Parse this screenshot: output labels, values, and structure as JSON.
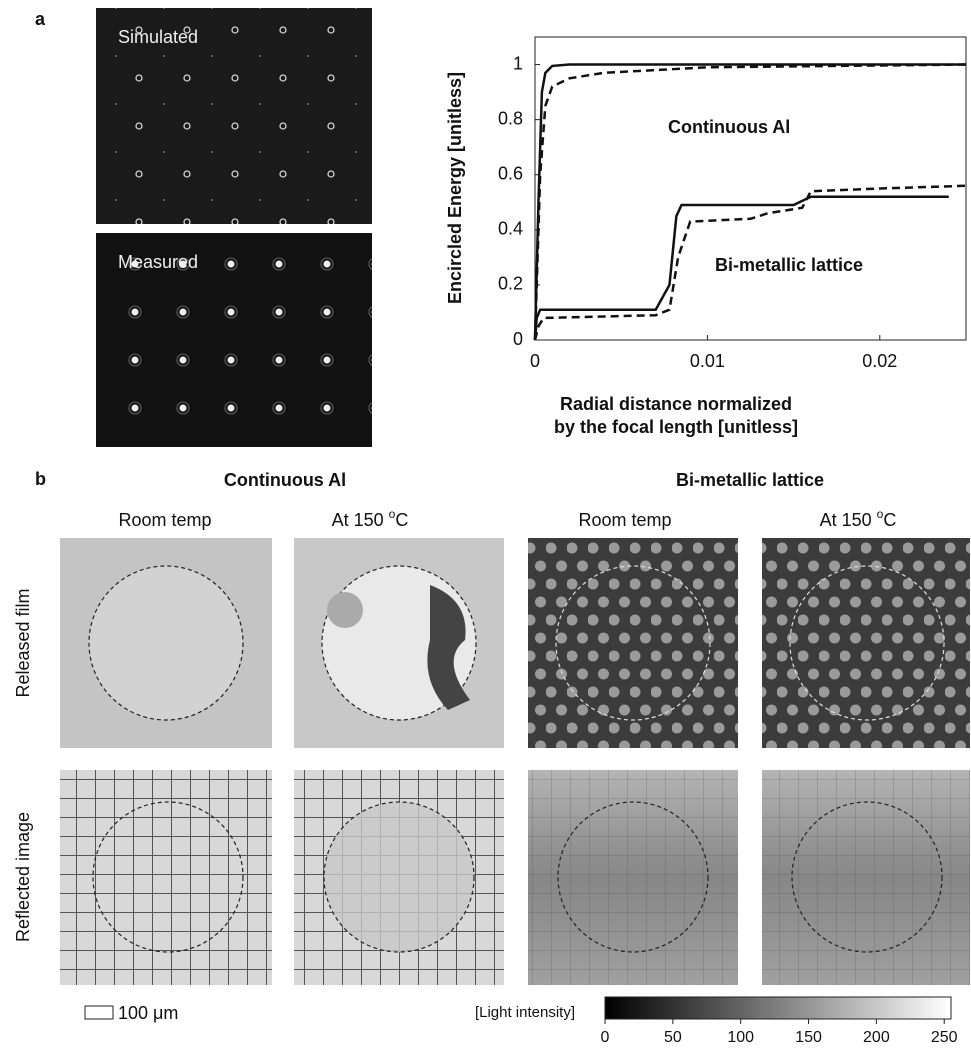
{
  "panel_a": {
    "label": "a",
    "images": [
      "Simulated",
      "Measured"
    ]
  },
  "chart_data": {
    "type": "line",
    "ylabel": "Encircled Energy [unitless]",
    "xlabel": [
      "Radial distance normalized",
      "by the focal length [unitless]"
    ],
    "xlim": [
      0,
      0.025
    ],
    "ylim": [
      0,
      1.1
    ],
    "xticks": [
      0,
      0.01,
      0.02
    ],
    "yticks": [
      0,
      0.2,
      0.4,
      0.6,
      0.8,
      1
    ],
    "annotations": [
      "Continuous Al",
      "Bi-metallic lattice"
    ],
    "series": [
      {
        "color": "#111111",
        "style": "solid",
        "x": [
          0,
          0.0002,
          0.0004,
          0.0006,
          0.001,
          0.002,
          0.025
        ],
        "values": [
          0,
          0.5,
          0.9,
          0.97,
          0.995,
          1,
          1
        ]
      },
      {
        "color": "#111111",
        "style": "dashed",
        "x": [
          0,
          0.0003,
          0.0006,
          0.001,
          0.002,
          0.004,
          0.01,
          0.025
        ],
        "values": [
          0,
          0.6,
          0.85,
          0.92,
          0.95,
          0.97,
          0.99,
          1.0
        ]
      },
      {
        "color": "#111111",
        "style": "solid",
        "x": [
          0,
          0.0001,
          0.0003,
          0.007,
          0.0078,
          0.0082,
          0.0085,
          0.015,
          0.016,
          0.024
        ],
        "values": [
          0,
          0.08,
          0.11,
          0.11,
          0.2,
          0.45,
          0.49,
          0.49,
          0.52,
          0.52
        ]
      },
      {
        "color": "#111111",
        "style": "dashed",
        "x": [
          0,
          0.0002,
          0.0005,
          0.007,
          0.0078,
          0.0083,
          0.009,
          0.0125,
          0.0135,
          0.0155,
          0.016,
          0.02,
          0.025
        ],
        "values": [
          0,
          0.05,
          0.08,
          0.09,
          0.11,
          0.3,
          0.43,
          0.44,
          0.46,
          0.48,
          0.54,
          0.55,
          0.56
        ]
      }
    ]
  },
  "panel_b": {
    "label": "b",
    "groups": [
      {
        "title": "Continuous Al",
        "columns": [
          {
            "text": "Room temp"
          },
          {
            "prefix": "At 150 ",
            "sup": "o",
            "suffix": "C"
          }
        ]
      },
      {
        "title": "Bi-metallic lattice",
        "columns": [
          {
            "text": "Room temp"
          },
          {
            "prefix": "At 150 ",
            "sup": "o",
            "suffix": "C"
          }
        ]
      }
    ],
    "rows": [
      "Released film",
      "Reflected image"
    ],
    "scale_bar": "100 μm",
    "colorbar": {
      "label": "[Light intensity]",
      "lim": [
        0,
        255
      ],
      "ticks": [
        0,
        50,
        100,
        150,
        200,
        250
      ]
    }
  }
}
